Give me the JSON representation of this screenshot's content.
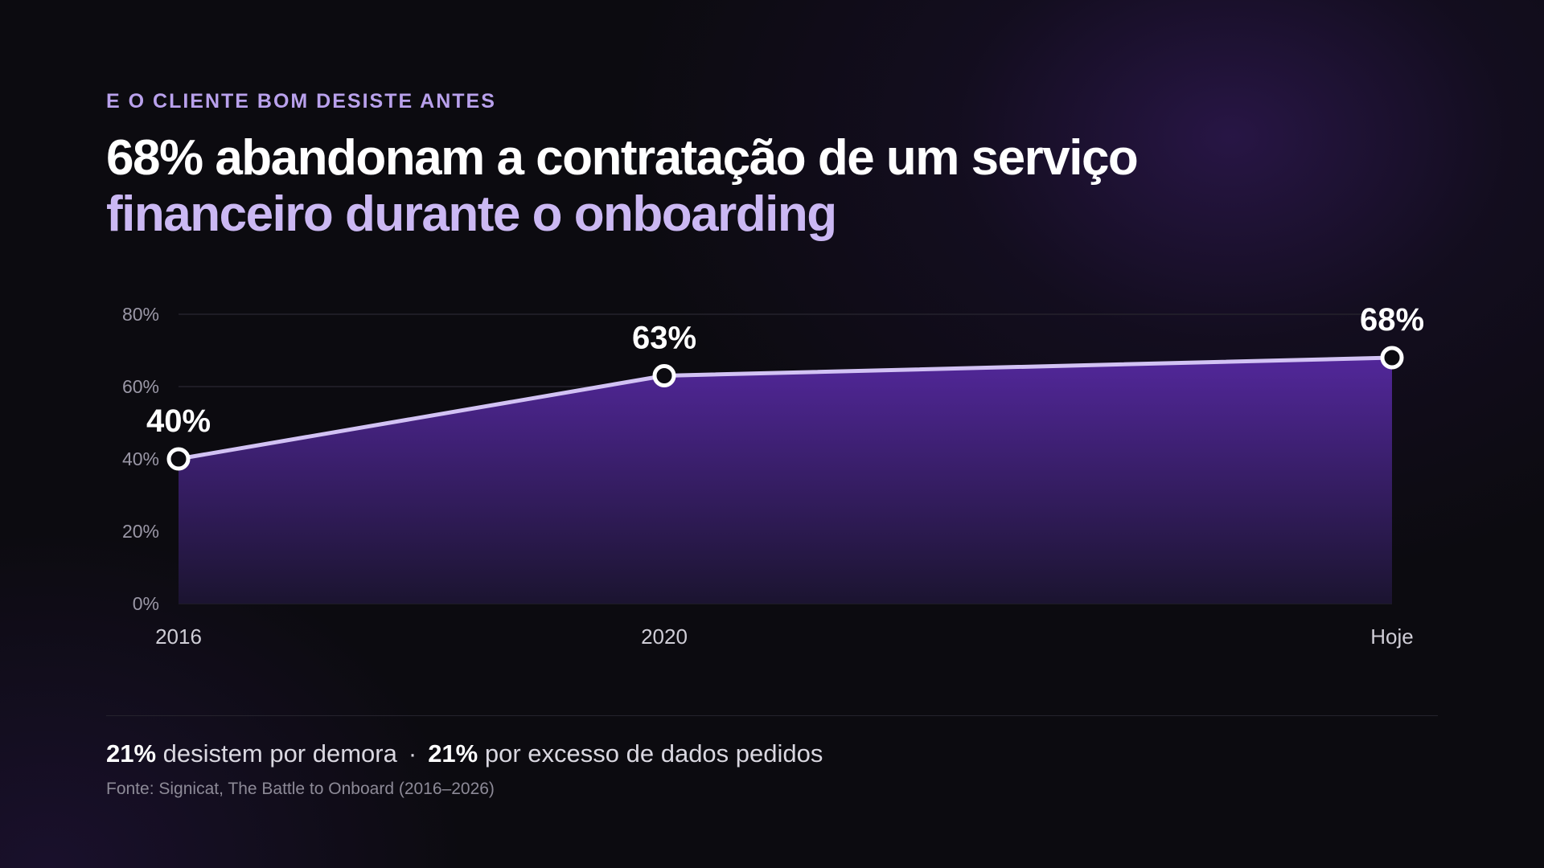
{
  "header": {
    "eyebrow": "E O CLIENTE BOM DESISTE ANTES",
    "title_line1": "68% abandonam a contratação de um serviço",
    "title_line2": "financeiro durante o onboarding"
  },
  "chart_data": {
    "type": "area",
    "categories": [
      "2016",
      "2020",
      "Hoje"
    ],
    "values": [
      40,
      63,
      68
    ],
    "data_labels": [
      "40%",
      "63%",
      "68%"
    ],
    "ylim": [
      0,
      80
    ],
    "yticks": [
      0,
      20,
      40,
      60,
      80
    ],
    "ytick_labels": [
      "0%",
      "20%",
      "40%",
      "60%",
      "80%"
    ],
    "grid": true,
    "colors": {
      "line": "#d2c2f4",
      "fill_top": "#52279a",
      "fill_bottom": "#1b1430",
      "marker_fill": "#0c0b10",
      "marker_stroke": "#ffffff",
      "grid": "#24222c"
    }
  },
  "footer": {
    "stat1_value": "21%",
    "stat1_text": "desistem por demora",
    "separator": "·",
    "stat2_value": "21%",
    "stat2_text": "por excesso de dados pedidos",
    "source": "Fonte: Signicat, The Battle to Onboard (2016–2026)"
  }
}
